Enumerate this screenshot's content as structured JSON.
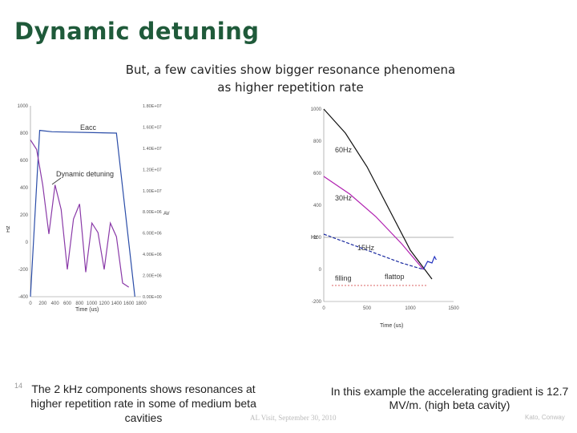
{
  "slide": {
    "title": "Dynamic detuning",
    "subtitle_line1": "But, a few cavities show bigger resonance phenomena",
    "subtitle_line2": "as higher repetition rate",
    "caption_left": "The 2 kHz components shows resonances  at higher repetition rate in some of medium beta cavities",
    "caption_right": "In this example the accelerating gradient is 12.7 MV/m. (high beta cavity)",
    "page_number": "14",
    "footer": "AL Visit, September 30, 2010",
    "footer_right": "Kato, Conway"
  },
  "chart_data": [
    {
      "type": "line",
      "xlabel": "Time (us)",
      "ylabel": "Hz",
      "y2label": "AV",
      "xlim": [
        0,
        1800
      ],
      "ylim": [
        -400,
        1000
      ],
      "x_ticks": [
        "0",
        "200",
        "400",
        "600",
        "800",
        "1000",
        "1200",
        "1400",
        "1600",
        "1800"
      ],
      "y_ticks": [
        "1000",
        "800",
        "600",
        "400",
        "200",
        "0",
        "-200",
        "-400"
      ],
      "y2_ticks": [
        "1.80E+07",
        "1.60E+07",
        "1.40E+07",
        "1.20E+07",
        "1.00E+07",
        "8.00E+06",
        "6.00E+06",
        "4.00E+06",
        "2.00E+06",
        "0.00E+00"
      ],
      "annotations": [
        "Eacc",
        "Dynamic detuning"
      ],
      "series": [
        {
          "name": "Eacc",
          "color": "#2b4da8",
          "x": [
            0,
            150,
            350,
            1400,
            1700
          ],
          "y": [
            -400,
            820,
            810,
            800,
            -400
          ]
        },
        {
          "name": "Dynamic detuning",
          "color": "#8a3aa8",
          "x": [
            0,
            100,
            200,
            300,
            400,
            500,
            600,
            700,
            800,
            900,
            1000,
            1100,
            1200,
            1300,
            1400,
            1500,
            1600
          ],
          "y": [
            750,
            680,
            420,
            60,
            420,
            240,
            -200,
            170,
            280,
            -220,
            140,
            70,
            -200,
            140,
            40,
            -300,
            -330
          ]
        }
      ]
    },
    {
      "type": "line",
      "xlabel": "Time (us)",
      "ylabel": "Hz",
      "xlim": [
        0,
        1500
      ],
      "ylim": [
        -200,
        1000
      ],
      "x_ticks": [
        "0",
        "500",
        "1000",
        "1500"
      ],
      "y_ticks": [
        "1000",
        "800",
        "600",
        "400",
        "200",
        "0",
        "-200"
      ],
      "annotations": [
        "filling",
        "flattop"
      ],
      "series": [
        {
          "name": "60Hz",
          "color": "#111111",
          "x": [
            0,
            250,
            500,
            750,
            1000,
            1250
          ],
          "y": [
            1000,
            850,
            640,
            380,
            120,
            -60
          ]
        },
        {
          "name": "30Hz",
          "color": "#b020b0",
          "x": [
            0,
            300,
            600,
            900,
            1150
          ],
          "y": [
            580,
            470,
            330,
            160,
            0
          ]
        },
        {
          "name": "15Hz",
          "color": "#1a2aa0",
          "x": [
            0,
            300,
            600,
            900,
            1150
          ],
          "y": [
            220,
            160,
            100,
            40,
            0
          ]
        },
        {
          "name": "",
          "color": "#2030c0",
          "x": [
            1150,
            1200,
            1250,
            1280,
            1300
          ],
          "y": [
            0,
            50,
            40,
            80,
            60
          ]
        }
      ]
    }
  ]
}
